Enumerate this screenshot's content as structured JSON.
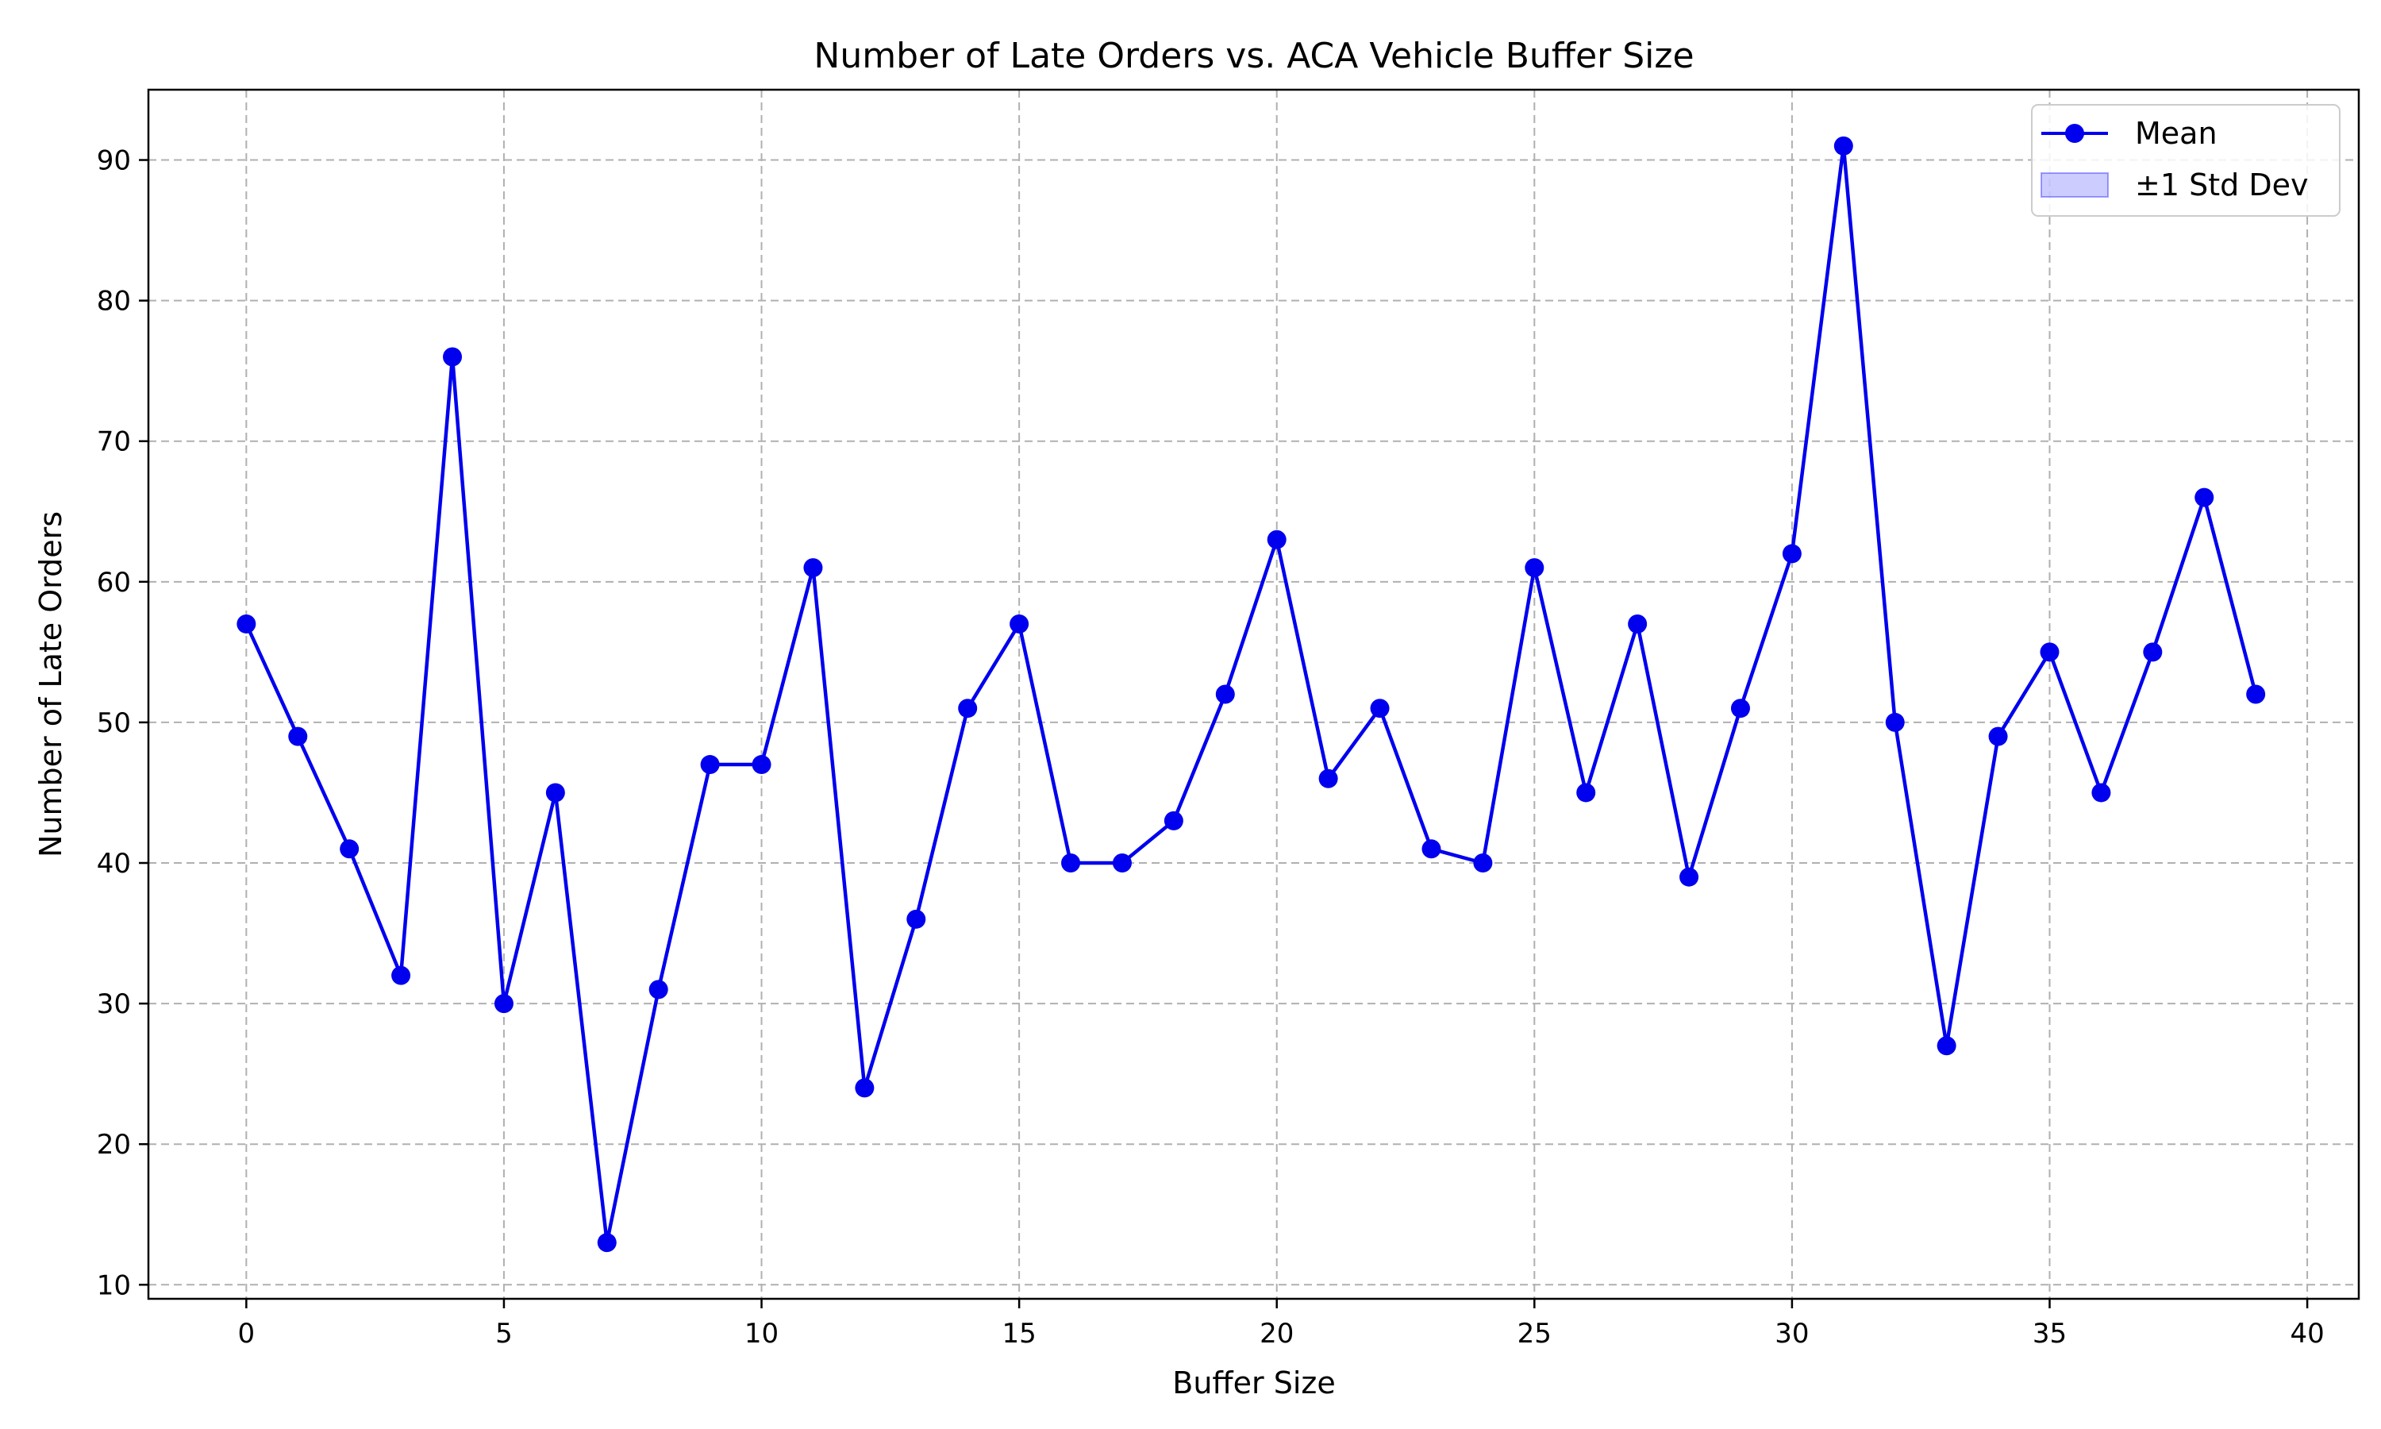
{
  "chart_data": {
    "type": "line",
    "title": "Number of Late Orders vs. ACA Vehicle Buffer Size",
    "xlabel": "Buffer Size",
    "ylabel": "Number of Late Orders",
    "xlim": [
      -1.9,
      41
    ],
    "ylim": [
      9,
      95
    ],
    "xticks": [
      0,
      5,
      10,
      15,
      20,
      25,
      30,
      35,
      40
    ],
    "yticks": [
      10,
      20,
      30,
      40,
      50,
      60,
      70,
      80,
      90
    ],
    "grid": true,
    "legend_position": "top-right",
    "legend": [
      {
        "label": "Mean",
        "kind": "line-marker",
        "color": "#0000ee"
      },
      {
        "label": "±1 Std Dev",
        "kind": "band",
        "color": "#0000ff"
      }
    ],
    "series": [
      {
        "name": "Mean",
        "color": "#0000ee",
        "x": [
          0,
          1,
          2,
          3,
          4,
          5,
          6,
          7,
          8,
          9,
          10,
          11,
          12,
          13,
          14,
          15,
          16,
          17,
          18,
          19,
          20,
          21,
          22,
          23,
          24,
          25,
          26,
          27,
          28,
          29,
          30,
          31,
          32,
          33,
          34,
          35,
          36,
          37,
          38,
          39
        ],
        "values": [
          57,
          49,
          41,
          32,
          76,
          30,
          45,
          13,
          31,
          47,
          47,
          61,
          24,
          36,
          51,
          57,
          40,
          40,
          43,
          52,
          63,
          46,
          51,
          41,
          40,
          61,
          45,
          57,
          39,
          51,
          62,
          91,
          50,
          27,
          49,
          55,
          45,
          55,
          66,
          52
        ]
      }
    ]
  }
}
